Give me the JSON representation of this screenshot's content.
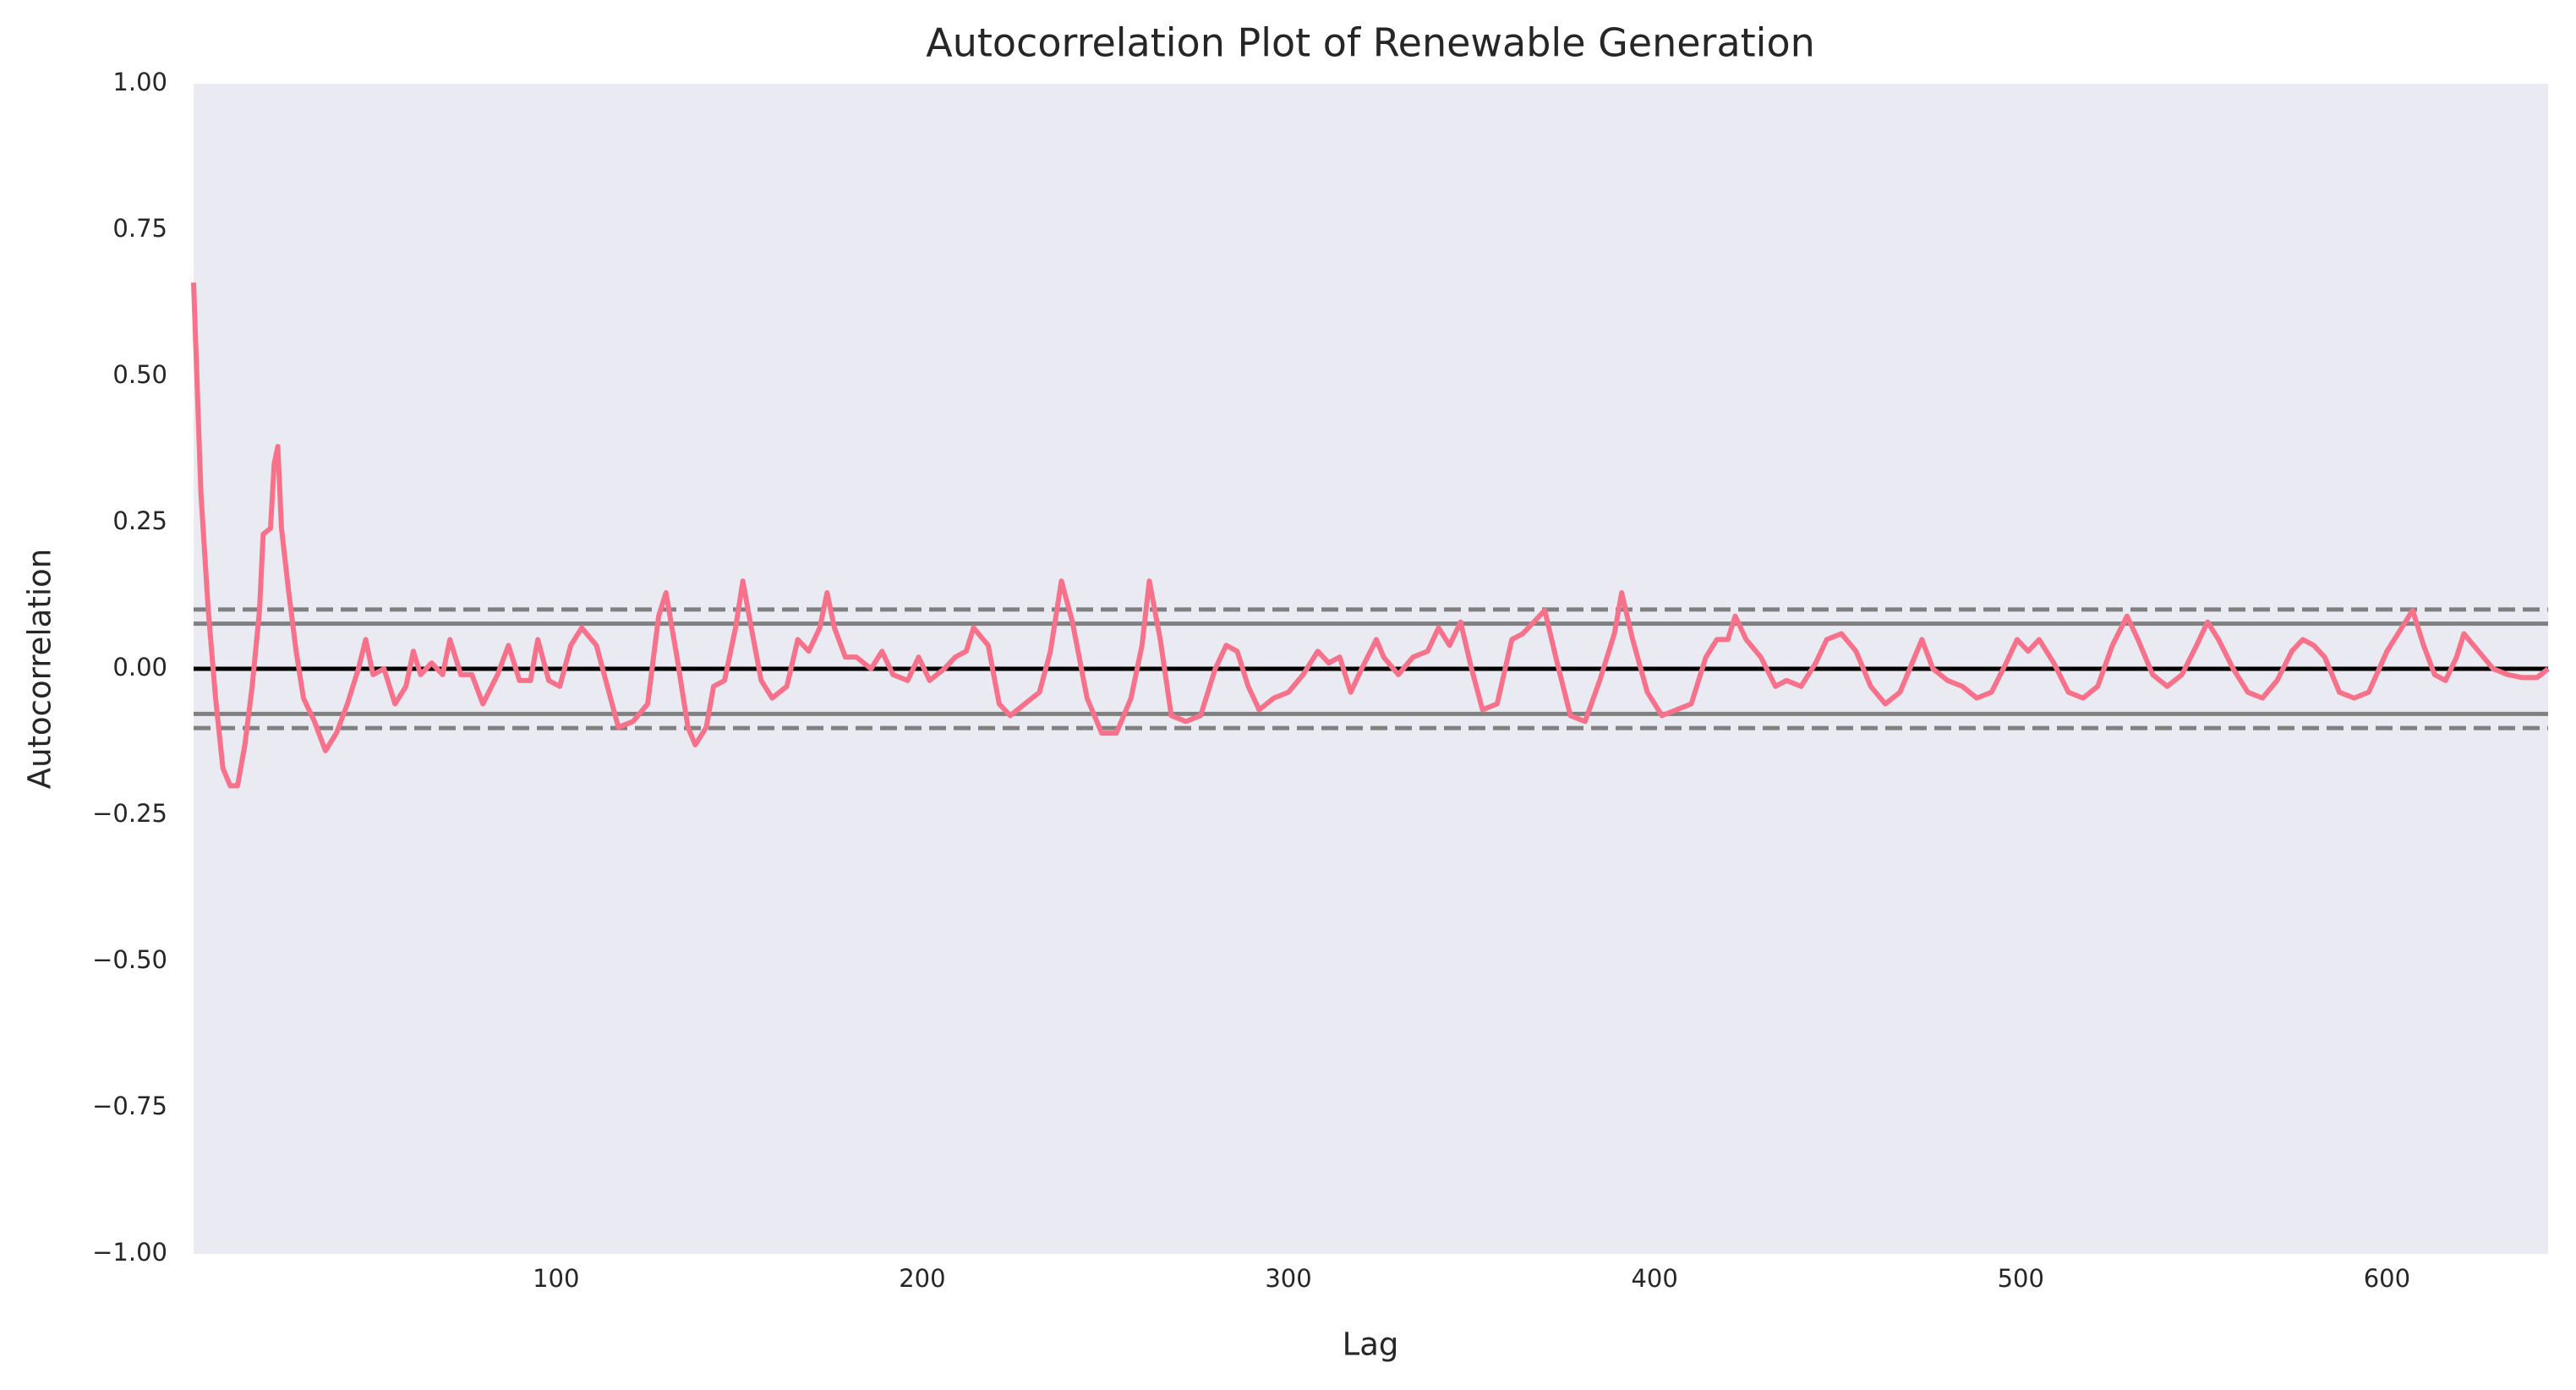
{
  "chart_data": {
    "type": "line",
    "title": "Autocorrelation Plot of Renewable Generation",
    "xlabel": "Lag",
    "ylabel": "Autocorrelation",
    "color": "#f7718a",
    "x": [
      1,
      3,
      5,
      7,
      9,
      11,
      13,
      15,
      17,
      19,
      20,
      22,
      23,
      24,
      25,
      27,
      29,
      31,
      34,
      37,
      40,
      43,
      46,
      48,
      50,
      53,
      56,
      59,
      61,
      63,
      66,
      69,
      71,
      74,
      77,
      80,
      84,
      87,
      90,
      93,
      95,
      98,
      101,
      104,
      107,
      111,
      114,
      117,
      121,
      125,
      128,
      130,
      133,
      136,
      138,
      141,
      143,
      146,
      149,
      151,
      153,
      156,
      159,
      163,
      166,
      169,
      172,
      174,
      176,
      179,
      182,
      186,
      189,
      192,
      196,
      199,
      202,
      206,
      209,
      212,
      214,
      218,
      221,
      224,
      228,
      232,
      235,
      238,
      241,
      245,
      249,
      253,
      257,
      260,
      262,
      265,
      268,
      272,
      276,
      280,
      283,
      286,
      289,
      292,
      296,
      300,
      304,
      308,
      311,
      314,
      317,
      320,
      324,
      326,
      330,
      334,
      338,
      341,
      344,
      347,
      350,
      353,
      357,
      361,
      364,
      367,
      370,
      373,
      377,
      381,
      385,
      389,
      391,
      394,
      398,
      402,
      406,
      410,
      414,
      417,
      420,
      422,
      425,
      429,
      433,
      436,
      440,
      444,
      447,
      451,
      455,
      459,
      463,
      467,
      471,
      473,
      476,
      480,
      484,
      488,
      492,
      496,
      499,
      502,
      505,
      509,
      513,
      517,
      521,
      525,
      529,
      532,
      536,
      540,
      544,
      548,
      551,
      554,
      558,
      562,
      566,
      570,
      574,
      577,
      580,
      583,
      587,
      591,
      595,
      600,
      604,
      607,
      610,
      613,
      616,
      619,
      621,
      625,
      629,
      633,
      637,
      641,
      644
    ],
    "values": [
      0.66,
      0.3,
      0.1,
      -0.05,
      -0.17,
      -0.2,
      -0.2,
      -0.13,
      -0.03,
      0.1,
      0.23,
      0.24,
      0.35,
      0.38,
      0.24,
      0.13,
      0.03,
      -0.05,
      -0.09,
      -0.14,
      -0.11,
      -0.06,
      0.0,
      0.05,
      -0.01,
      0.0,
      -0.06,
      -0.03,
      0.03,
      -0.01,
      0.01,
      -0.01,
      0.05,
      -0.01,
      -0.01,
      -0.06,
      -0.01,
      0.04,
      -0.02,
      -0.02,
      0.05,
      -0.02,
      -0.03,
      0.04,
      0.07,
      0.04,
      -0.03,
      -0.1,
      -0.09,
      -0.06,
      0.09,
      0.13,
      0.02,
      -0.1,
      -0.13,
      -0.1,
      -0.03,
      -0.02,
      0.07,
      0.15,
      0.08,
      -0.02,
      -0.05,
      -0.03,
      0.05,
      0.03,
      0.07,
      0.13,
      0.07,
      0.02,
      0.02,
      0.0,
      0.03,
      -0.01,
      -0.02,
      0.02,
      -0.02,
      0.0,
      0.02,
      0.03,
      0.07,
      0.04,
      -0.06,
      -0.08,
      -0.06,
      -0.04,
      0.03,
      0.15,
      0.08,
      -0.05,
      -0.11,
      -0.11,
      -0.05,
      0.04,
      0.15,
      0.05,
      -0.08,
      -0.09,
      -0.08,
      0.0,
      0.04,
      0.03,
      -0.03,
      -0.07,
      -0.05,
      -0.04,
      -0.01,
      0.03,
      0.01,
      0.02,
      -0.04,
      0.0,
      0.05,
      0.02,
      -0.01,
      0.02,
      0.03,
      0.07,
      0.04,
      0.08,
      0.0,
      -0.07,
      -0.06,
      0.05,
      0.06,
      0.08,
      0.1,
      0.02,
      -0.08,
      -0.09,
      -0.02,
      0.06,
      0.13,
      0.05,
      -0.04,
      -0.08,
      -0.07,
      -0.06,
      0.02,
      0.05,
      0.05,
      0.09,
      0.05,
      0.02,
      -0.03,
      -0.02,
      -0.03,
      0.01,
      0.05,
      0.06,
      0.03,
      -0.03,
      -0.06,
      -0.04,
      0.02,
      0.05,
      0.0,
      -0.02,
      -0.03,
      -0.05,
      -0.04,
      0.01,
      0.05,
      0.03,
      0.05,
      0.01,
      -0.04,
      -0.05,
      -0.03,
      0.04,
      0.09,
      0.05,
      -0.01,
      -0.03,
      -0.01,
      0.04,
      0.08,
      0.05,
      0.0,
      -0.04,
      -0.05,
      -0.02,
      0.03,
      0.05,
      0.04,
      0.02,
      -0.04,
      -0.05,
      -0.04,
      0.03,
      0.07,
      0.1,
      0.04,
      -0.01,
      -0.02,
      0.02,
      0.06,
      0.03,
      0.0,
      -0.01,
      -0.015,
      -0.015,
      0.0
    ],
    "xlim": [
      1,
      644
    ],
    "ylim": [
      -1,
      1
    ],
    "xticks": [
      100,
      200,
      300,
      400,
      500,
      600
    ],
    "yticks": [
      {
        "value": -1,
        "label": "−1.00"
      },
      {
        "value": -0.75,
        "label": "−0.75"
      },
      {
        "value": -0.5,
        "label": "−0.50"
      },
      {
        "value": -0.25,
        "label": "−0.25"
      },
      {
        "value": 0,
        "label": "0.00"
      },
      {
        "value": 0.25,
        "label": "0.25"
      },
      {
        "value": 0.5,
        "label": "0.50"
      },
      {
        "value": 0.75,
        "label": "0.75"
      },
      {
        "value": 1,
        "label": "1.00"
      }
    ],
    "hlines": [
      {
        "value": 0.1014,
        "color": "#808080",
        "dashed": true
      },
      {
        "value": 0.0772,
        "color": "#808080",
        "dashed": false
      },
      {
        "value": 0,
        "color": "#000000",
        "dashed": false
      },
      {
        "value": -0.0772,
        "color": "#808080",
        "dashed": false
      },
      {
        "value": -0.1014,
        "color": "#808080",
        "dashed": true
      }
    ],
    "background": "#eaeaf2"
  }
}
